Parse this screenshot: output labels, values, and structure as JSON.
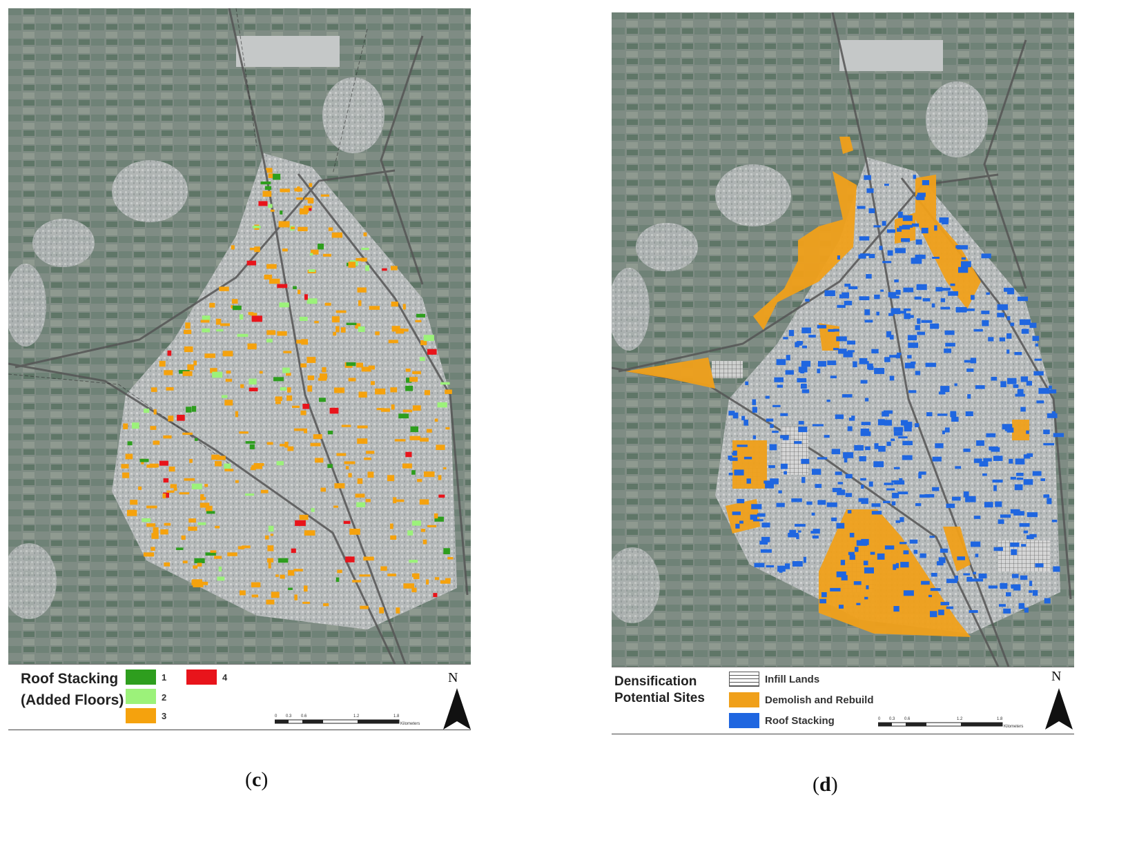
{
  "panel_c": {
    "legend_title_1": "Roof Stacking",
    "legend_title_2": "(Added Floors)",
    "classes": [
      {
        "label": "1",
        "color": "#2e9e1e"
      },
      {
        "label": "2",
        "color": "#9cf27a"
      },
      {
        "label": "3",
        "color": "#f5a20d"
      },
      {
        "label": "4",
        "color": "#e8141b"
      }
    ],
    "north": "N",
    "scale_ticks": [
      "0",
      "0.3",
      "0.6",
      "1.2",
      "1.8"
    ],
    "scale_unit": "Kilometers",
    "caption_letter": "c"
  },
  "panel_d": {
    "legend_title_1": "Densification",
    "legend_title_2": "Potential Sites",
    "classes": [
      {
        "label": "Infill Lands",
        "color": "#ffffff"
      },
      {
        "label": "Demolish and Rebuild",
        "color": "#f0a01a"
      },
      {
        "label": "Roof Stacking",
        "color": "#1f66e0"
      }
    ],
    "north": "N",
    "scale_ticks": [
      "0",
      "0.3",
      "0.6",
      "1.2",
      "1.8"
    ],
    "scale_unit": "Kilometers",
    "caption_letter": "d"
  }
}
